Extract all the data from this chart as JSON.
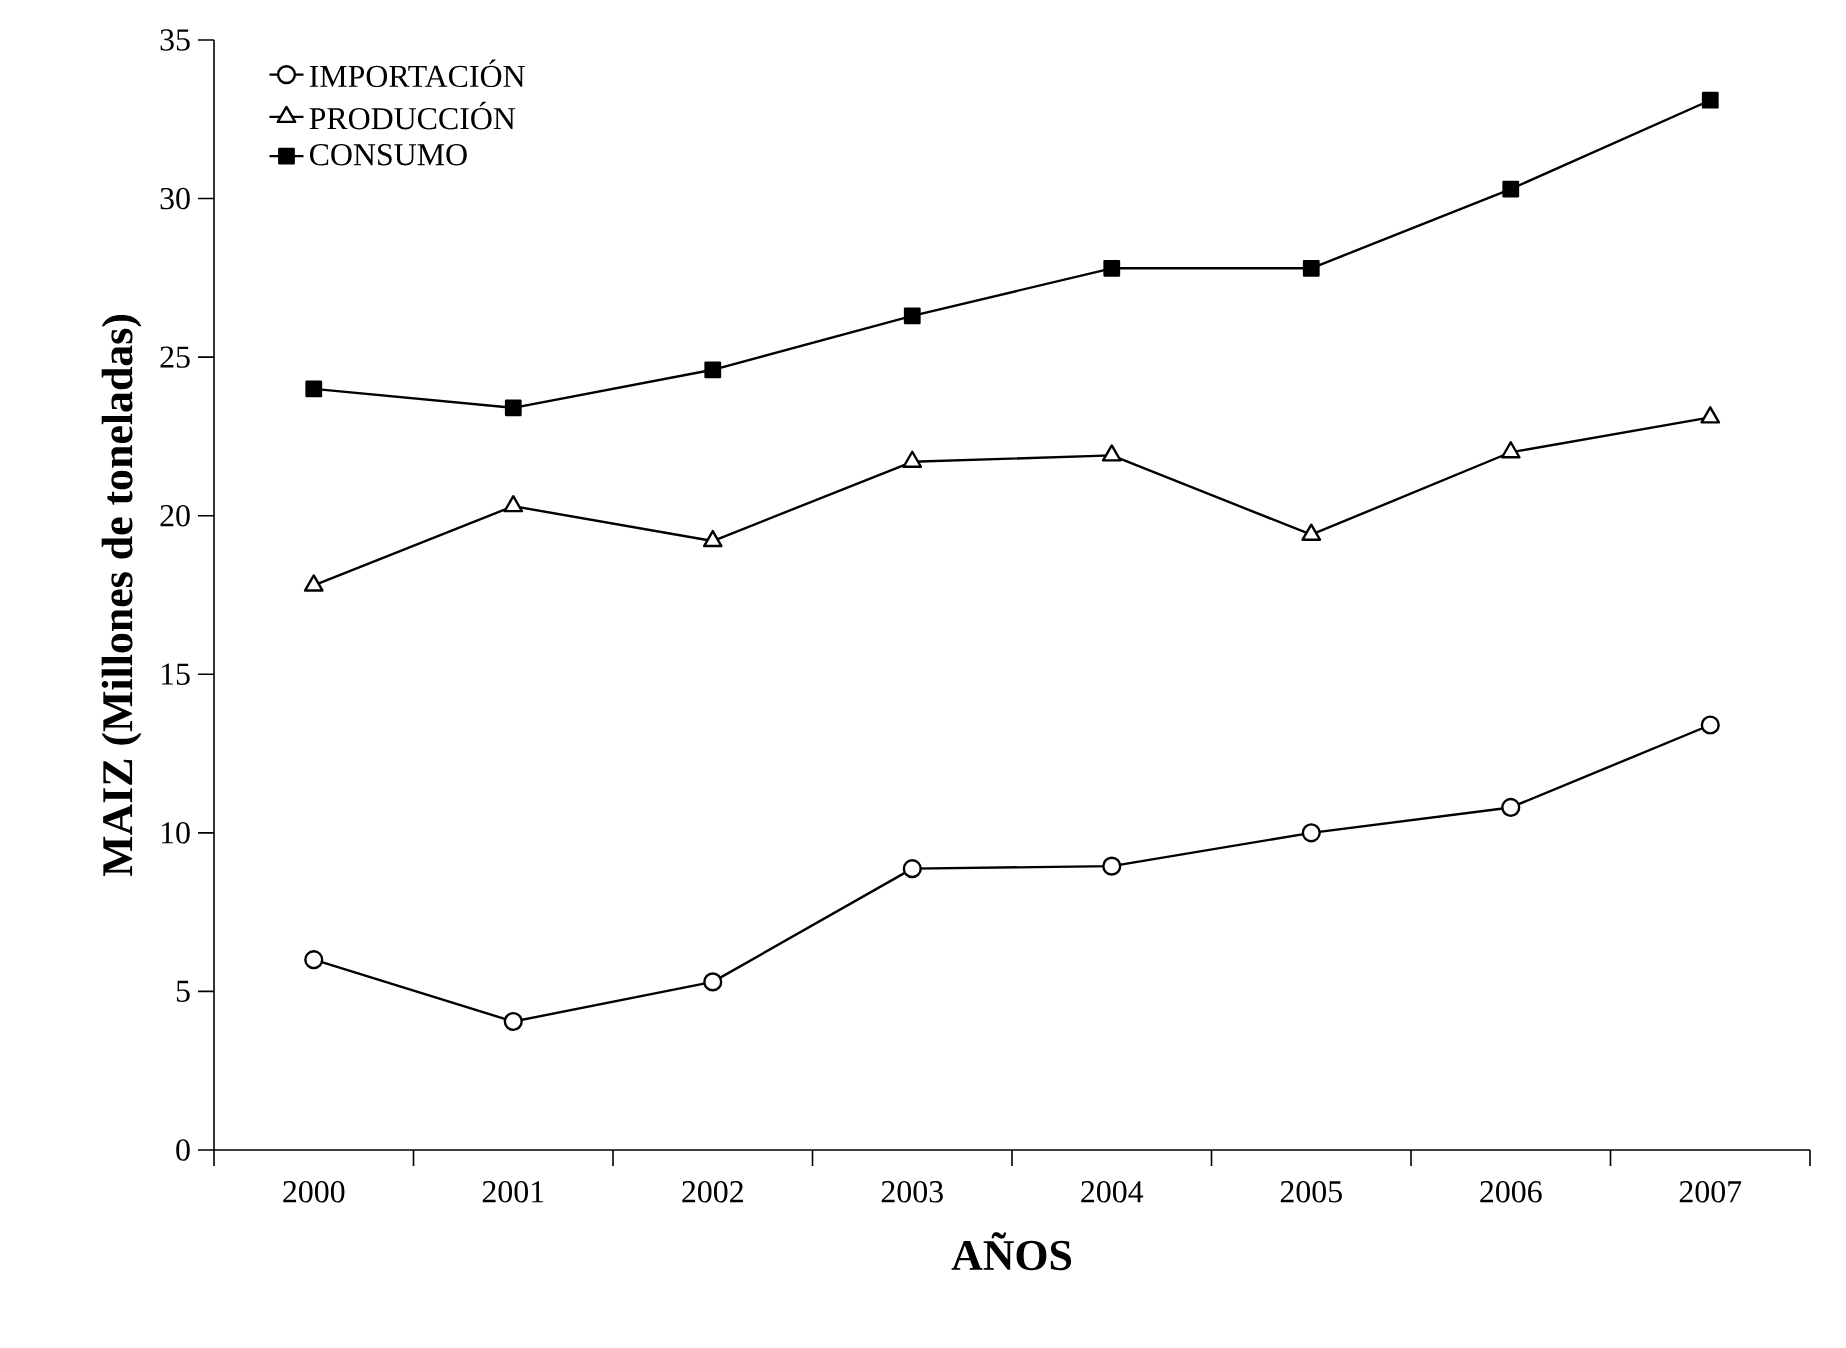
{
  "chart_data": {
    "type": "line",
    "xlabel": "AÑOS",
    "ylabel": "MAIZ (Millones de toneladas)",
    "categories": [
      "2000",
      "2001",
      "2002",
      "2003",
      "2004",
      "2005",
      "2006",
      "2007"
    ],
    "series": [
      {
        "name": "IMPORTACIÓN",
        "color": "#000000",
        "marker": "circle",
        "values": [
          6.0,
          4.05,
          5.3,
          8.87,
          8.95,
          10.0,
          10.8,
          13.4
        ]
      },
      {
        "name": "PRODUCCIÓN",
        "color": "#000000",
        "marker": "triangle",
        "values": [
          17.8,
          20.3,
          19.2,
          21.7,
          21.9,
          19.4,
          22.0,
          23.1
        ]
      },
      {
        "name": "CONSUMO",
        "color": "#000000",
        "marker": "square",
        "values": [
          24.0,
          23.4,
          24.6,
          26.3,
          27.8,
          27.8,
          30.3,
          33.1
        ]
      }
    ],
    "ylim": [
      0,
      35
    ],
    "yticks": [
      0,
      5,
      10,
      15,
      20,
      25,
      30,
      35
    ],
    "grid": false,
    "legend": "top left",
    "line_style": "solid"
  }
}
